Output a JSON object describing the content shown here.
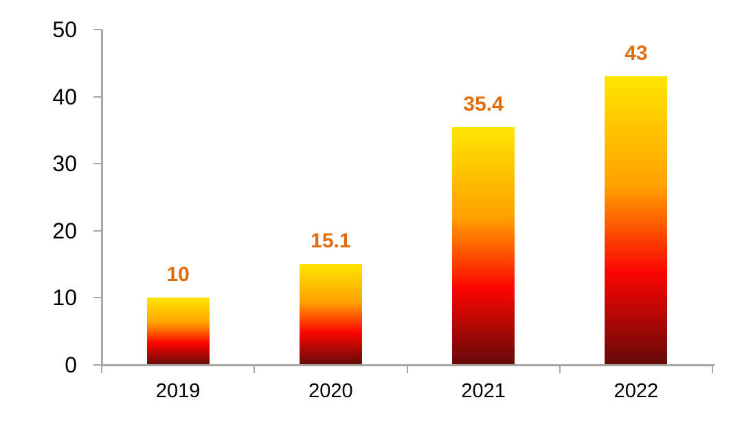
{
  "chart_data": {
    "type": "bar",
    "title": "",
    "xlabel": "",
    "ylabel": "",
    "categories": [
      "2019",
      "2020",
      "2021",
      "2022"
    ],
    "values": [
      10,
      15.1,
      35.4,
      43
    ],
    "data_labels": [
      "10",
      "15.1",
      "35.4",
      "43"
    ],
    "ylim": [
      0,
      50
    ],
    "yticks": [
      0,
      10,
      20,
      30,
      40,
      50
    ],
    "grid": false,
    "legend": false,
    "colors": {
      "axis": "#a6a6a6",
      "tick_label": "#000000",
      "data_label": "#e36c0a",
      "bar_gradient_stops": [
        {
          "color": "#ffe500",
          "pos": 0
        },
        {
          "color": "#ffa100",
          "pos": 38
        },
        {
          "color": "#fb0500",
          "pos": 68
        },
        {
          "color": "#640b08",
          "pos": 100
        }
      ]
    }
  }
}
